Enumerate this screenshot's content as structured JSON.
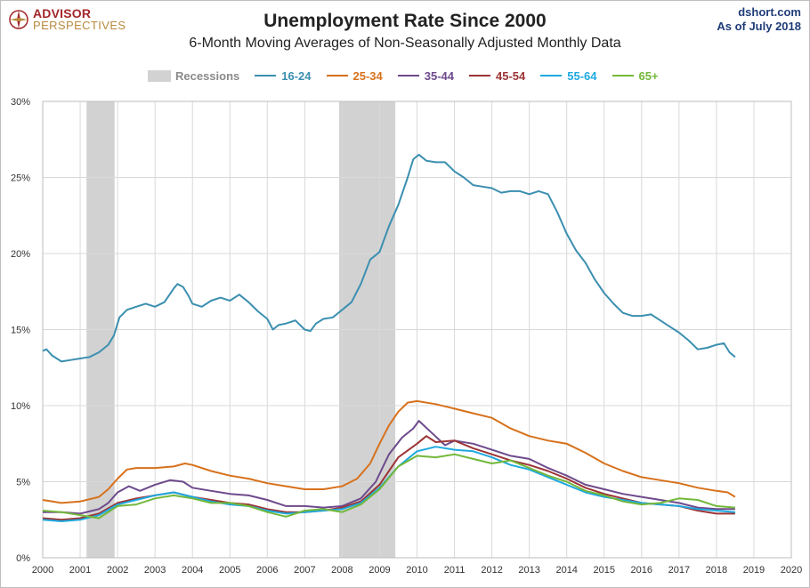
{
  "header": {
    "logo_line1": "ADVISOR",
    "logo_line2": "PERSPECTIVES",
    "source_line1": "dshort.com",
    "source_line2": "As  of July 2018"
  },
  "chart_data": {
    "type": "line",
    "title": "Unemployment Rate Since 2000",
    "subtitle": "6-Month Moving Averages of Non-Seasonally Adjusted Monthly Data",
    "xlabel": "",
    "ylabel": "",
    "xlim": [
      2000,
      2020
    ],
    "ylim": [
      0,
      30
    ],
    "x_ticks": [
      2000,
      2001,
      2002,
      2003,
      2004,
      2005,
      2006,
      2007,
      2008,
      2009,
      2010,
      2011,
      2012,
      2013,
      2014,
      2015,
      2016,
      2017,
      2018,
      2019,
      2020
    ],
    "y_ticks": [
      0,
      5,
      10,
      15,
      20,
      25,
      30
    ],
    "y_tick_labels": [
      "0%",
      "5%",
      "10%",
      "15%",
      "20%",
      "25%",
      "30%"
    ],
    "grid": true,
    "legend_position": "top-center",
    "recessions": {
      "name": "Recessions",
      "color": "#d2d2d2",
      "periods": [
        [
          2001.17,
          2001.92
        ],
        [
          2007.92,
          2009.42
        ]
      ]
    },
    "series": [
      {
        "name": "16-24",
        "color": "#3b8fb0",
        "points": [
          [
            2000.0,
            13.6
          ],
          [
            2000.1,
            13.7
          ],
          [
            2000.25,
            13.3
          ],
          [
            2000.5,
            12.9
          ],
          [
            2000.75,
            13.0
          ],
          [
            2001.0,
            13.1
          ],
          [
            2001.25,
            13.2
          ],
          [
            2001.5,
            13.5
          ],
          [
            2001.75,
            14.0
          ],
          [
            2001.9,
            14.6
          ],
          [
            2002.05,
            15.8
          ],
          [
            2002.25,
            16.3
          ],
          [
            2002.5,
            16.5
          ],
          [
            2002.75,
            16.7
          ],
          [
            2003.0,
            16.5
          ],
          [
            2003.25,
            16.8
          ],
          [
            2003.5,
            17.7
          ],
          [
            2003.6,
            18.0
          ],
          [
            2003.75,
            17.8
          ],
          [
            2003.9,
            17.2
          ],
          [
            2004.0,
            16.7
          ],
          [
            2004.25,
            16.5
          ],
          [
            2004.5,
            16.9
          ],
          [
            2004.75,
            17.1
          ],
          [
            2005.0,
            16.9
          ],
          [
            2005.25,
            17.3
          ],
          [
            2005.5,
            16.8
          ],
          [
            2005.75,
            16.2
          ],
          [
            2006.0,
            15.7
          ],
          [
            2006.15,
            15.0
          ],
          [
            2006.3,
            15.3
          ],
          [
            2006.5,
            15.4
          ],
          [
            2006.75,
            15.6
          ],
          [
            2007.0,
            15.0
          ],
          [
            2007.15,
            14.9
          ],
          [
            2007.3,
            15.4
          ],
          [
            2007.5,
            15.7
          ],
          [
            2007.75,
            15.8
          ],
          [
            2008.0,
            16.3
          ],
          [
            2008.25,
            16.8
          ],
          [
            2008.5,
            18.0
          ],
          [
            2008.75,
            19.6
          ],
          [
            2009.0,
            20.1
          ],
          [
            2009.25,
            21.8
          ],
          [
            2009.5,
            23.2
          ],
          [
            2009.75,
            25.0
          ],
          [
            2009.9,
            26.2
          ],
          [
            2010.05,
            26.5
          ],
          [
            2010.25,
            26.1
          ],
          [
            2010.5,
            26.0
          ],
          [
            2010.75,
            26.0
          ],
          [
            2011.0,
            25.4
          ],
          [
            2011.25,
            25.0
          ],
          [
            2011.5,
            24.5
          ],
          [
            2011.75,
            24.4
          ],
          [
            2012.0,
            24.3
          ],
          [
            2012.25,
            24.0
          ],
          [
            2012.5,
            24.1
          ],
          [
            2012.75,
            24.1
          ],
          [
            2013.0,
            23.9
          ],
          [
            2013.25,
            24.1
          ],
          [
            2013.5,
            23.9
          ],
          [
            2013.75,
            22.7
          ],
          [
            2014.0,
            21.3
          ],
          [
            2014.25,
            20.2
          ],
          [
            2014.5,
            19.4
          ],
          [
            2014.75,
            18.3
          ],
          [
            2015.0,
            17.4
          ],
          [
            2015.25,
            16.7
          ],
          [
            2015.5,
            16.1
          ],
          [
            2015.75,
            15.9
          ],
          [
            2016.0,
            15.9
          ],
          [
            2016.25,
            16.0
          ],
          [
            2016.5,
            15.6
          ],
          [
            2016.75,
            15.2
          ],
          [
            2017.0,
            14.8
          ],
          [
            2017.25,
            14.3
          ],
          [
            2017.5,
            13.7
          ],
          [
            2017.75,
            13.8
          ],
          [
            2018.0,
            14.0
          ],
          [
            2018.2,
            14.1
          ],
          [
            2018.35,
            13.5
          ],
          [
            2018.5,
            13.2
          ]
        ]
      },
      {
        "name": "25-34",
        "color": "#d7711c",
        "points": [
          [
            2000.0,
            3.8
          ],
          [
            2000.5,
            3.6
          ],
          [
            2001.0,
            3.7
          ],
          [
            2001.5,
            4.0
          ],
          [
            2001.75,
            4.5
          ],
          [
            2002.0,
            5.2
          ],
          [
            2002.25,
            5.8
          ],
          [
            2002.5,
            5.9
          ],
          [
            2003.0,
            5.9
          ],
          [
            2003.5,
            6.0
          ],
          [
            2003.8,
            6.2
          ],
          [
            2004.0,
            6.1
          ],
          [
            2004.5,
            5.7
          ],
          [
            2005.0,
            5.4
          ],
          [
            2005.5,
            5.2
          ],
          [
            2006.0,
            4.9
          ],
          [
            2006.5,
            4.7
          ],
          [
            2007.0,
            4.5
          ],
          [
            2007.5,
            4.5
          ],
          [
            2008.0,
            4.7
          ],
          [
            2008.4,
            5.2
          ],
          [
            2008.75,
            6.2
          ],
          [
            2009.0,
            7.5
          ],
          [
            2009.25,
            8.7
          ],
          [
            2009.5,
            9.6
          ],
          [
            2009.75,
            10.2
          ],
          [
            2010.0,
            10.3
          ],
          [
            2010.5,
            10.1
          ],
          [
            2011.0,
            9.8
          ],
          [
            2011.5,
            9.5
          ],
          [
            2012.0,
            9.2
          ],
          [
            2012.5,
            8.5
          ],
          [
            2013.0,
            8.0
          ],
          [
            2013.5,
            7.7
          ],
          [
            2014.0,
            7.5
          ],
          [
            2014.5,
            6.9
          ],
          [
            2015.0,
            6.2
          ],
          [
            2015.5,
            5.7
          ],
          [
            2016.0,
            5.3
          ],
          [
            2016.5,
            5.1
          ],
          [
            2017.0,
            4.9
          ],
          [
            2017.5,
            4.6
          ],
          [
            2018.0,
            4.4
          ],
          [
            2018.3,
            4.3
          ],
          [
            2018.5,
            4.0
          ]
        ]
      },
      {
        "name": "35-44",
        "color": "#6e4a8c",
        "points": [
          [
            2000.0,
            3.0
          ],
          [
            2000.5,
            3.0
          ],
          [
            2001.0,
            2.9
          ],
          [
            2001.5,
            3.2
          ],
          [
            2001.75,
            3.6
          ],
          [
            2002.0,
            4.3
          ],
          [
            2002.3,
            4.7
          ],
          [
            2002.6,
            4.4
          ],
          [
            2003.0,
            4.8
          ],
          [
            2003.4,
            5.1
          ],
          [
            2003.75,
            5.0
          ],
          [
            2004.0,
            4.6
          ],
          [
            2004.5,
            4.4
          ],
          [
            2005.0,
            4.2
          ],
          [
            2005.5,
            4.1
          ],
          [
            2006.0,
            3.8
          ],
          [
            2006.5,
            3.4
          ],
          [
            2007.0,
            3.4
          ],
          [
            2007.5,
            3.3
          ],
          [
            2008.0,
            3.4
          ],
          [
            2008.5,
            3.9
          ],
          [
            2008.9,
            5.0
          ],
          [
            2009.25,
            6.8
          ],
          [
            2009.6,
            7.9
          ],
          [
            2009.9,
            8.5
          ],
          [
            2010.05,
            9.0
          ],
          [
            2010.4,
            8.2
          ],
          [
            2010.75,
            7.4
          ],
          [
            2011.0,
            7.7
          ],
          [
            2011.5,
            7.5
          ],
          [
            2012.0,
            7.1
          ],
          [
            2012.5,
            6.7
          ],
          [
            2013.0,
            6.5
          ],
          [
            2013.5,
            5.9
          ],
          [
            2014.0,
            5.4
          ],
          [
            2014.5,
            4.8
          ],
          [
            2015.0,
            4.5
          ],
          [
            2015.5,
            4.2
          ],
          [
            2016.0,
            4.0
          ],
          [
            2016.5,
            3.8
          ],
          [
            2017.0,
            3.6
          ],
          [
            2017.5,
            3.3
          ],
          [
            2018.0,
            3.2
          ],
          [
            2018.5,
            3.2
          ]
        ]
      },
      {
        "name": "45-54",
        "color": "#9c3436",
        "points": [
          [
            2000.0,
            2.6
          ],
          [
            2000.5,
            2.5
          ],
          [
            2001.0,
            2.6
          ],
          [
            2001.5,
            2.9
          ],
          [
            2002.0,
            3.6
          ],
          [
            2002.5,
            3.9
          ],
          [
            2003.0,
            4.1
          ],
          [
            2003.5,
            4.3
          ],
          [
            2004.0,
            4.0
          ],
          [
            2004.5,
            3.8
          ],
          [
            2005.0,
            3.6
          ],
          [
            2005.5,
            3.5
          ],
          [
            2006.0,
            3.2
          ],
          [
            2006.5,
            3.0
          ],
          [
            2007.0,
            3.0
          ],
          [
            2007.5,
            3.1
          ],
          [
            2008.0,
            3.3
          ],
          [
            2008.5,
            3.7
          ],
          [
            2009.0,
            4.8
          ],
          [
            2009.5,
            6.6
          ],
          [
            2010.0,
            7.5
          ],
          [
            2010.25,
            8.0
          ],
          [
            2010.5,
            7.6
          ],
          [
            2011.0,
            7.7
          ],
          [
            2011.5,
            7.2
          ],
          [
            2012.0,
            6.8
          ],
          [
            2012.5,
            6.4
          ],
          [
            2013.0,
            6.1
          ],
          [
            2013.5,
            5.7
          ],
          [
            2014.0,
            5.2
          ],
          [
            2014.5,
            4.6
          ],
          [
            2015.0,
            4.2
          ],
          [
            2015.5,
            3.9
          ],
          [
            2016.0,
            3.6
          ],
          [
            2016.5,
            3.5
          ],
          [
            2017.0,
            3.4
          ],
          [
            2017.5,
            3.1
          ],
          [
            2018.0,
            2.9
          ],
          [
            2018.5,
            2.9
          ]
        ]
      },
      {
        "name": "55-64",
        "color": "#1ea9df",
        "points": [
          [
            2000.0,
            2.5
          ],
          [
            2000.5,
            2.4
          ],
          [
            2001.0,
            2.5
          ],
          [
            2001.5,
            2.8
          ],
          [
            2002.0,
            3.5
          ],
          [
            2002.5,
            3.8
          ],
          [
            2003.0,
            4.1
          ],
          [
            2003.5,
            4.3
          ],
          [
            2004.0,
            4.0
          ],
          [
            2004.5,
            3.7
          ],
          [
            2005.0,
            3.5
          ],
          [
            2005.5,
            3.4
          ],
          [
            2006.0,
            3.1
          ],
          [
            2006.5,
            2.9
          ],
          [
            2007.0,
            3.0
          ],
          [
            2007.5,
            3.1
          ],
          [
            2008.0,
            3.2
          ],
          [
            2008.5,
            3.6
          ],
          [
            2009.0,
            4.6
          ],
          [
            2009.5,
            6.0
          ],
          [
            2010.0,
            7.0
          ],
          [
            2010.5,
            7.3
          ],
          [
            2011.0,
            7.1
          ],
          [
            2011.5,
            7.0
          ],
          [
            2012.0,
            6.6
          ],
          [
            2012.5,
            6.1
          ],
          [
            2013.0,
            5.8
          ],
          [
            2013.5,
            5.3
          ],
          [
            2014.0,
            4.8
          ],
          [
            2014.5,
            4.3
          ],
          [
            2015.0,
            4.0
          ],
          [
            2015.5,
            3.8
          ],
          [
            2016.0,
            3.6
          ],
          [
            2016.5,
            3.5
          ],
          [
            2017.0,
            3.4
          ],
          [
            2017.5,
            3.2
          ],
          [
            2018.0,
            3.1
          ],
          [
            2018.5,
            3.0
          ]
        ]
      },
      {
        "name": "65+",
        "color": "#73b83a",
        "points": [
          [
            2000.0,
            3.1
          ],
          [
            2000.5,
            3.0
          ],
          [
            2001.0,
            2.8
          ],
          [
            2001.5,
            2.6
          ],
          [
            2002.0,
            3.4
          ],
          [
            2002.5,
            3.5
          ],
          [
            2003.0,
            3.9
          ],
          [
            2003.5,
            4.1
          ],
          [
            2004.0,
            3.9
          ],
          [
            2004.5,
            3.6
          ],
          [
            2005.0,
            3.6
          ],
          [
            2005.5,
            3.4
          ],
          [
            2006.0,
            3.0
          ],
          [
            2006.5,
            2.7
          ],
          [
            2007.0,
            3.1
          ],
          [
            2007.5,
            3.2
          ],
          [
            2008.0,
            3.0
          ],
          [
            2008.5,
            3.5
          ],
          [
            2009.0,
            4.5
          ],
          [
            2009.5,
            6.0
          ],
          [
            2010.0,
            6.7
          ],
          [
            2010.5,
            6.6
          ],
          [
            2011.0,
            6.8
          ],
          [
            2011.5,
            6.5
          ],
          [
            2012.0,
            6.2
          ],
          [
            2012.5,
            6.4
          ],
          [
            2013.0,
            5.9
          ],
          [
            2013.5,
            5.4
          ],
          [
            2014.0,
            5.0
          ],
          [
            2014.5,
            4.4
          ],
          [
            2015.0,
            4.1
          ],
          [
            2015.5,
            3.7
          ],
          [
            2016.0,
            3.5
          ],
          [
            2016.5,
            3.6
          ],
          [
            2017.0,
            3.9
          ],
          [
            2017.5,
            3.8
          ],
          [
            2018.0,
            3.4
          ],
          [
            2018.5,
            3.3
          ]
        ]
      }
    ]
  }
}
